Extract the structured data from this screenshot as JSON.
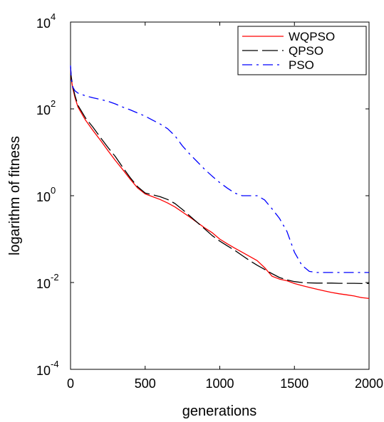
{
  "chart_data": {
    "type": "line",
    "title": "",
    "xlabel": "generations",
    "ylabel": "logarithm of fitness",
    "xlim": [
      0,
      2000
    ],
    "ylim": [
      0.0001,
      10000
    ],
    "yscale": "log",
    "xticks": [
      {
        "value": 0,
        "label": "0"
      },
      {
        "value": 500,
        "label": "500"
      },
      {
        "value": 1000,
        "label": "1000"
      },
      {
        "value": 1500,
        "label": "1500"
      },
      {
        "value": 2000,
        "label": "2000"
      }
    ],
    "yticks": [
      {
        "value": 0.0001,
        "base": "10",
        "exp": "-4"
      },
      {
        "value": 0.01,
        "base": "10",
        "exp": "-2"
      },
      {
        "value": 1,
        "base": "10",
        "exp": "0"
      },
      {
        "value": 100,
        "base": "10",
        "exp": "2"
      },
      {
        "value": 10000,
        "base": "10",
        "exp": "4"
      }
    ],
    "grid": false,
    "legend_position": "top-right",
    "series": [
      {
        "name": "WQPSO",
        "color": "#ff0000",
        "dash": "solid",
        "x": [
          0,
          5,
          15,
          30,
          50,
          100,
          150,
          200,
          250,
          300,
          350,
          400,
          450,
          500,
          550,
          600,
          650,
          700,
          750,
          800,
          850,
          900,
          950,
          1000,
          1050,
          1100,
          1150,
          1200,
          1250,
          1300,
          1350,
          1400,
          1450,
          1500,
          1550,
          1600,
          1650,
          1700,
          1750,
          1800,
          1850,
          1900,
          1950,
          2000
        ],
        "y": [
          900,
          500,
          300,
          180,
          110,
          55,
          32,
          19,
          11,
          6.5,
          4,
          2.4,
          1.5,
          1.1,
          0.95,
          0.82,
          0.68,
          0.55,
          0.42,
          0.32,
          0.24,
          0.18,
          0.14,
          0.1,
          0.078,
          0.062,
          0.05,
          0.04,
          0.032,
          0.022,
          0.014,
          0.012,
          0.011,
          0.0095,
          0.0085,
          0.0077,
          0.007,
          0.0064,
          0.0059,
          0.0055,
          0.0052,
          0.0049,
          0.0045,
          0.0043
        ]
      },
      {
        "name": "QPSO",
        "color": "#000000",
        "dash": "longdash",
        "x": [
          0,
          5,
          15,
          30,
          50,
          100,
          150,
          200,
          250,
          300,
          350,
          400,
          450,
          500,
          550,
          600,
          650,
          700,
          750,
          800,
          850,
          900,
          950,
          1000,
          1050,
          1100,
          1150,
          1200,
          1250,
          1300,
          1350,
          1400,
          1450,
          1500,
          1550,
          1600,
          1650,
          1700,
          1750,
          1800,
          1850,
          1900,
          1950,
          2000
        ],
        "y": [
          950,
          550,
          330,
          200,
          120,
          62,
          38,
          22,
          13,
          8,
          4.5,
          2.6,
          1.6,
          1.15,
          1.05,
          0.95,
          0.82,
          0.66,
          0.48,
          0.34,
          0.24,
          0.17,
          0.12,
          0.09,
          0.07,
          0.055,
          0.042,
          0.032,
          0.025,
          0.02,
          0.016,
          0.013,
          0.0115,
          0.0105,
          0.01,
          0.0098,
          0.0097,
          0.0097,
          0.0097,
          0.0096,
          0.0096,
          0.0096,
          0.0095,
          0.0095
        ]
      },
      {
        "name": "PSO",
        "color": "#0000ff",
        "dash": "dashdot",
        "x": [
          0,
          5,
          15,
          30,
          50,
          100,
          150,
          200,
          250,
          300,
          350,
          400,
          450,
          500,
          550,
          600,
          650,
          700,
          750,
          800,
          850,
          900,
          950,
          1000,
          1050,
          1100,
          1150,
          1200,
          1250,
          1300,
          1350,
          1400,
          1450,
          1500,
          1550,
          1600,
          1650,
          1700,
          1750,
          1800,
          1850,
          1900,
          1950,
          2000
        ],
        "y": [
          1000,
          500,
          320,
          260,
          230,
          200,
          180,
          165,
          150,
          130,
          110,
          95,
          80,
          68,
          55,
          45,
          35,
          24,
          14,
          9,
          6,
          4,
          2.8,
          2,
          1.5,
          1.15,
          1,
          1,
          1,
          0.8,
          0.5,
          0.3,
          0.15,
          0.05,
          0.025,
          0.018,
          0.017,
          0.017,
          0.017,
          0.017,
          0.017,
          0.017,
          0.017,
          0.017
        ]
      }
    ]
  }
}
